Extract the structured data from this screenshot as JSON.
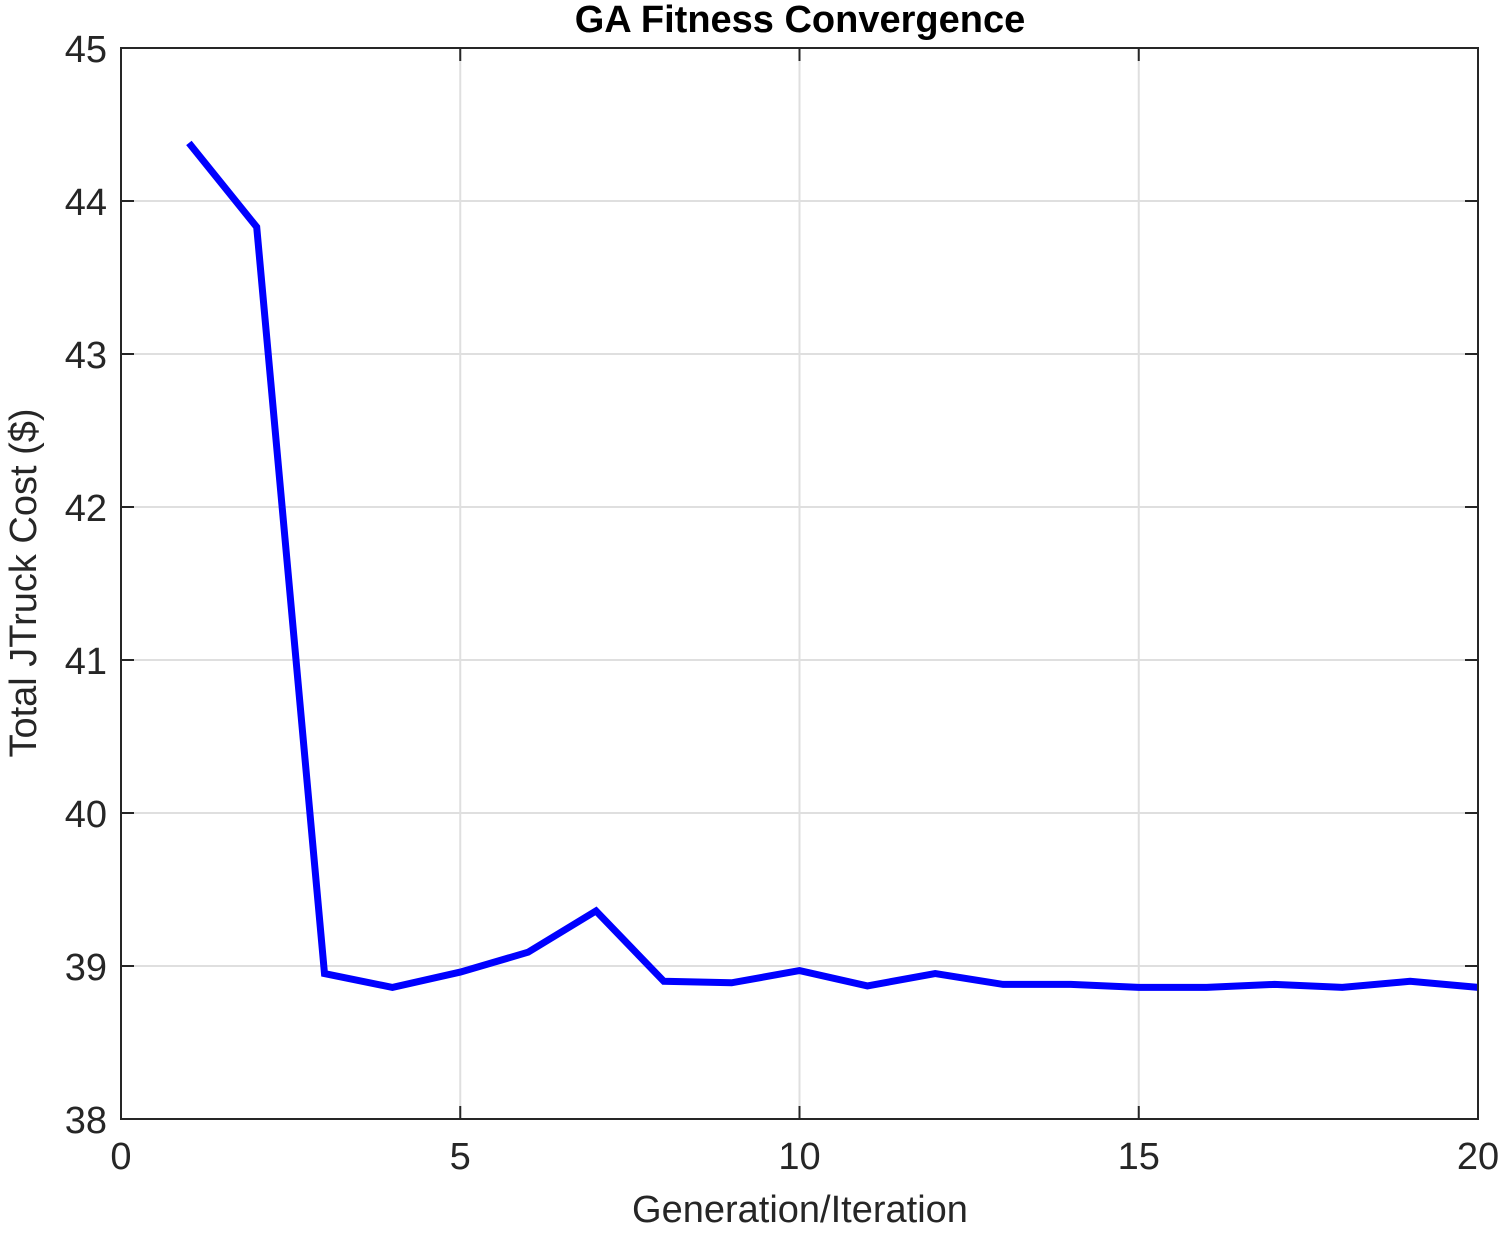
{
  "chart_data": {
    "type": "line",
    "title": "GA Fitness Convergence",
    "xlabel": "Generation/Iteration",
    "ylabel": "Total JTruck Cost ($)",
    "xlim": [
      0,
      20
    ],
    "ylim": [
      38,
      45
    ],
    "xticks": [
      0,
      5,
      10,
      15,
      20
    ],
    "yticks": [
      38,
      39,
      40,
      41,
      42,
      43,
      44,
      45
    ],
    "xtick_labels": [
      "0",
      "5",
      "10",
      "15",
      "20"
    ],
    "ytick_labels": [
      "38",
      "39",
      "40",
      "41",
      "42",
      "43",
      "44",
      "45"
    ],
    "grid": true,
    "series": [
      {
        "color": "#0000ff",
        "x": [
          1,
          2,
          3,
          4,
          5,
          6,
          7,
          8,
          9,
          10,
          11,
          12,
          13,
          14,
          15,
          16,
          17,
          18,
          19,
          20
        ],
        "y": [
          44.38,
          43.83,
          38.95,
          38.86,
          38.96,
          39.09,
          39.36,
          38.9,
          38.89,
          38.97,
          38.87,
          38.95,
          38.88,
          38.88,
          38.86,
          38.86,
          38.88,
          38.86,
          38.9,
          38.86
        ]
      }
    ],
    "colors": {
      "axis": "#262626",
      "grid": "#dfdfdf",
      "line": "#0000ff"
    }
  }
}
